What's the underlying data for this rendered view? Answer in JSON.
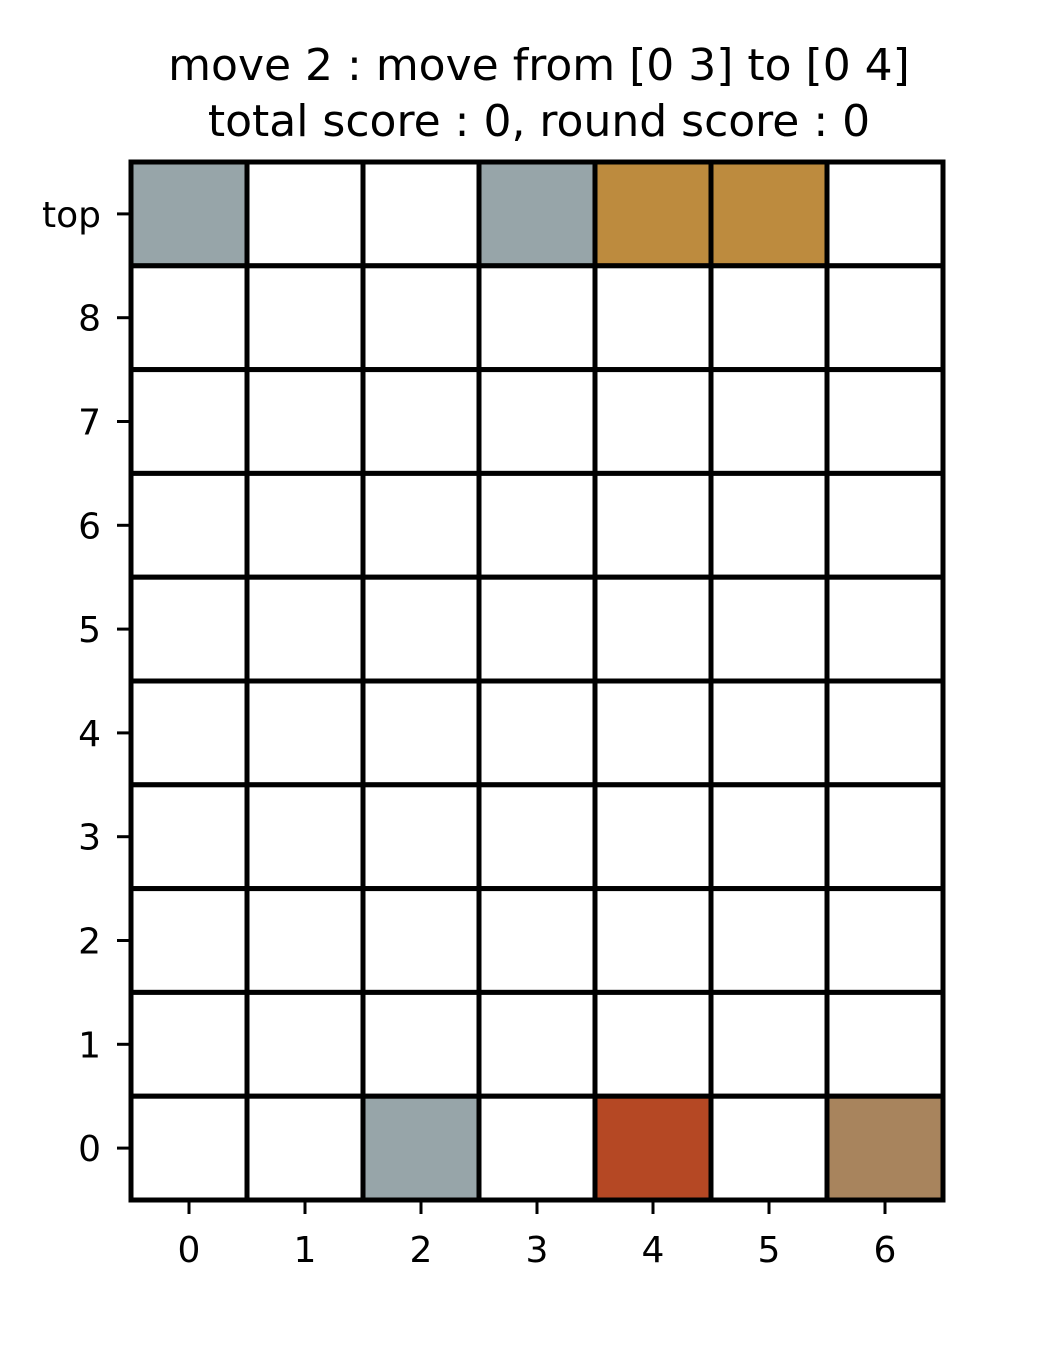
{
  "title": {
    "line1": "move 2 : move from [0 3] to [0 4]",
    "line2": "total score : 0, round score : 0"
  },
  "board": {
    "columns": 7,
    "row_labels_top_to_bottom": [
      "top",
      "8",
      "7",
      "6",
      "5",
      "4",
      "3",
      "2",
      "1",
      "0"
    ],
    "column_labels": [
      "0",
      "1",
      "2",
      "3",
      "4",
      "5",
      "6"
    ],
    "empty_color": "#ffffff",
    "grid_color": "#000000",
    "tiles": [
      {
        "row": "top",
        "col": 0,
        "color": "#97a5a9"
      },
      {
        "row": "top",
        "col": 3,
        "color": "#97a5a9"
      },
      {
        "row": "top",
        "col": 4,
        "color": "#bd8b3e"
      },
      {
        "row": "top",
        "col": 5,
        "color": "#bd8b3e"
      },
      {
        "row": "0",
        "col": 2,
        "color": "#97a5a9"
      },
      {
        "row": "0",
        "col": 4,
        "color": "#b54824"
      },
      {
        "row": "0",
        "col": 6,
        "color": "#a8845d"
      }
    ]
  }
}
